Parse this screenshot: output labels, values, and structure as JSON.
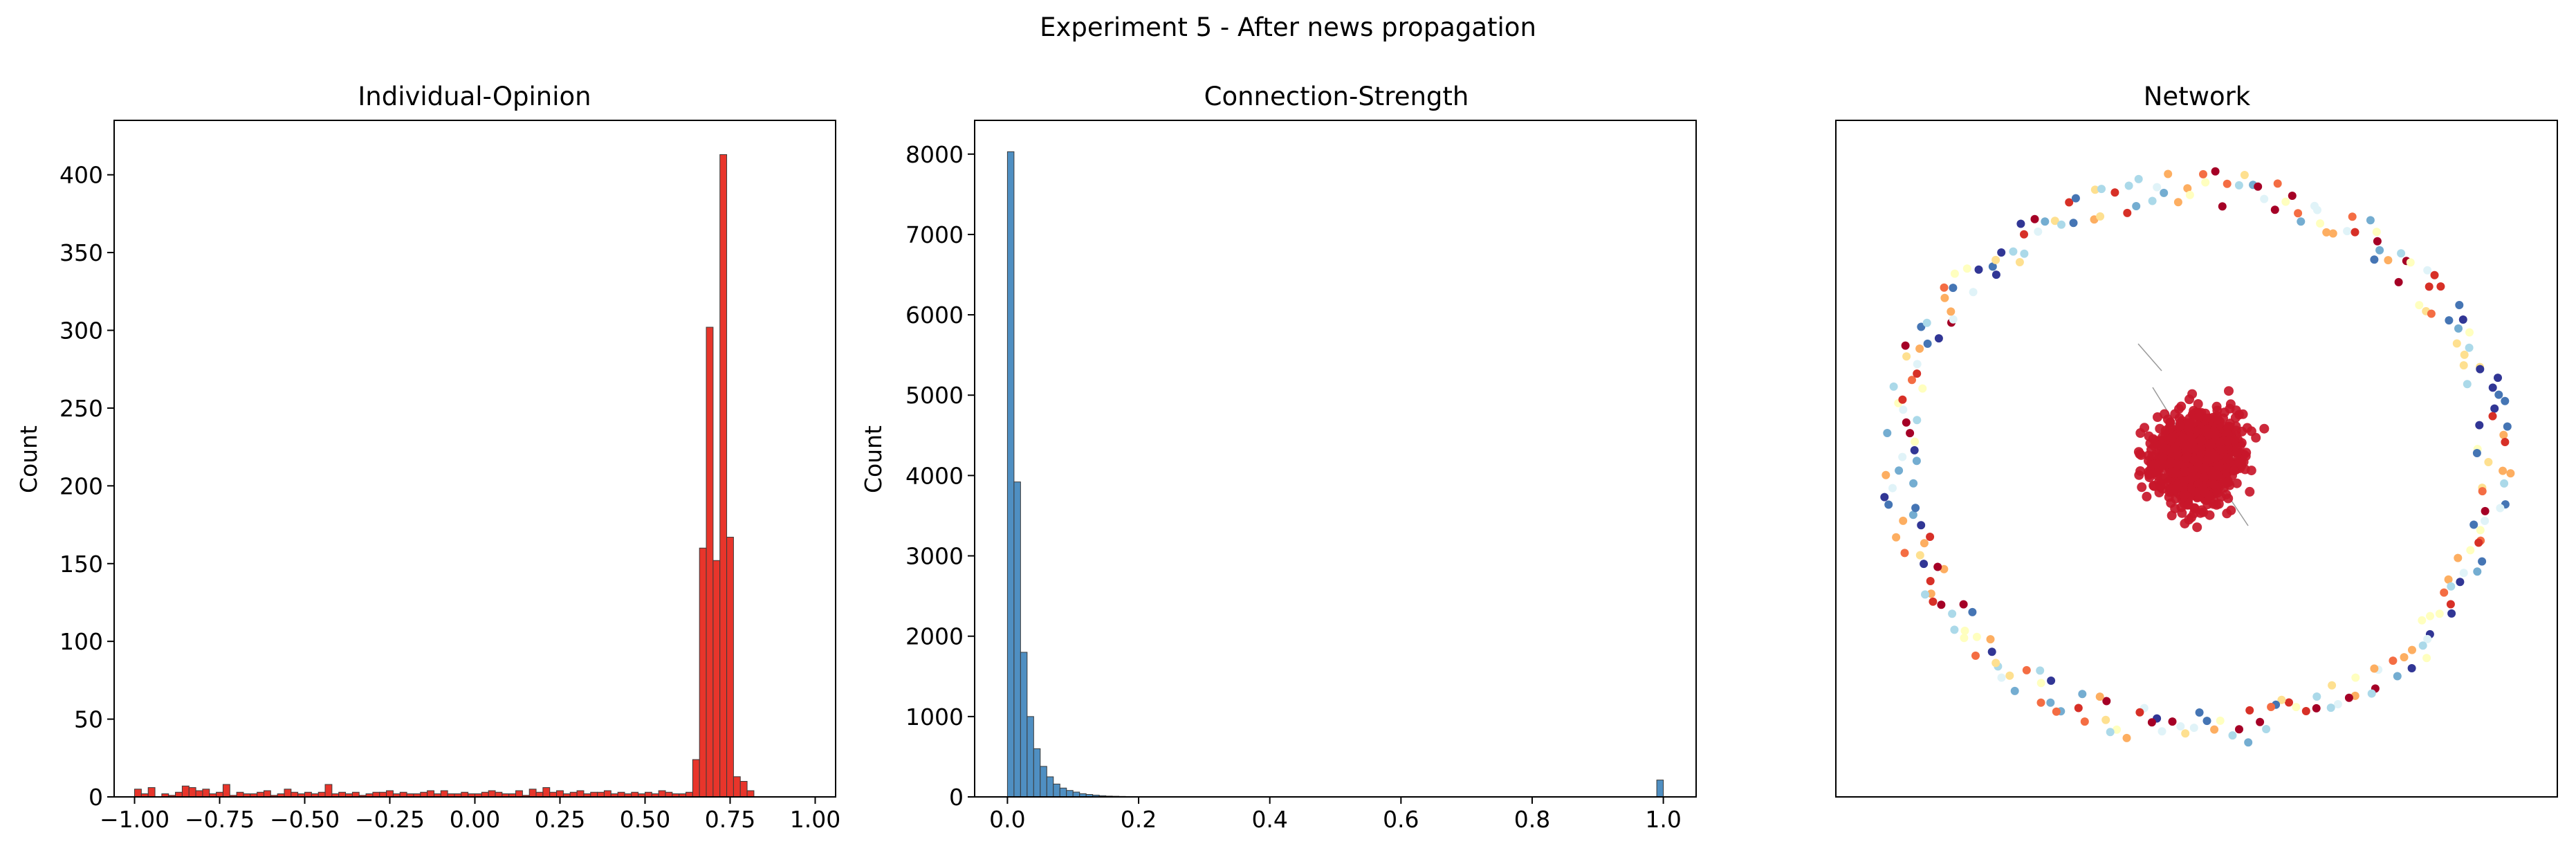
{
  "figure": {
    "suptitle": "Experiment 5 - After news propagation"
  },
  "colors": {
    "opinion_bar": "#e8352b",
    "strength_bar": "#4f8fc2",
    "bar_edge": "#3a3a3a",
    "network_cluster": "#c8172a",
    "network_edge": "#9a9a9a",
    "network_palette": [
      "#313695",
      "#4575b4",
      "#74add1",
      "#abd9e9",
      "#e0f3f8",
      "#ffffbf",
      "#fee090",
      "#fdae61",
      "#f46d43",
      "#d73027",
      "#a50026"
    ]
  },
  "chart_data": [
    {
      "type": "bar",
      "subtype": "histogram",
      "title": "Individual-Opinion",
      "xlabel": "",
      "ylabel": "Count",
      "xlim": [
        -1.06,
        1.06
      ],
      "ylim": [
        0,
        435
      ],
      "xticks": [
        -1.0,
        -0.75,
        -0.5,
        -0.25,
        0.0,
        0.25,
        0.5,
        0.75,
        1.0
      ],
      "xtick_labels": [
        "−1.00",
        "−0.75",
        "−0.50",
        "−0.25",
        "0.00",
        "0.25",
        "0.50",
        "0.75",
        "1.00"
      ],
      "yticks": [
        0,
        50,
        100,
        150,
        200,
        250,
        300,
        350,
        400
      ],
      "ytick_labels": [
        "0",
        "50",
        "100",
        "150",
        "200",
        "250",
        "300",
        "350",
        "400"
      ],
      "bin_start": -1.0,
      "bin_width": 0.02,
      "values": [
        5,
        2,
        6,
        0,
        2,
        1,
        3,
        7,
        6,
        4,
        5,
        2,
        3,
        8,
        1,
        3,
        2,
        2,
        3,
        4,
        1,
        2,
        5,
        3,
        2,
        3,
        2,
        3,
        8,
        2,
        3,
        2,
        3,
        1,
        2,
        3,
        3,
        4,
        2,
        3,
        2,
        2,
        3,
        4,
        2,
        4,
        2,
        2,
        3,
        2,
        2,
        3,
        4,
        3,
        2,
        2,
        4,
        1,
        5,
        3,
        6,
        3,
        4,
        2,
        3,
        4,
        2,
        3,
        3,
        4,
        2,
        3,
        2,
        3,
        2,
        3,
        2,
        4,
        3,
        2,
        2,
        3,
        24,
        160,
        302,
        152,
        413,
        167,
        13,
        10,
        4
      ],
      "grid": false,
      "legend": false
    },
    {
      "type": "bar",
      "subtype": "histogram",
      "title": "Connection-Strength",
      "xlabel": "",
      "ylabel": "Count",
      "xlim": [
        -0.05,
        1.05
      ],
      "ylim": [
        0,
        8420
      ],
      "xticks": [
        0.0,
        0.2,
        0.4,
        0.6,
        0.8,
        1.0
      ],
      "xtick_labels": [
        "0.0",
        "0.2",
        "0.4",
        "0.6",
        "0.8",
        "1.0"
      ],
      "yticks": [
        0,
        1000,
        2000,
        3000,
        4000,
        5000,
        6000,
        7000,
        8000
      ],
      "ytick_labels": [
        "0",
        "1000",
        "2000",
        "3000",
        "4000",
        "5000",
        "6000",
        "7000",
        "8000"
      ],
      "bin_start": 0.0,
      "bin_width": 0.01,
      "values": [
        8030,
        3920,
        1800,
        1000,
        600,
        380,
        250,
        160,
        110,
        80,
        60,
        40,
        30,
        22,
        15,
        10,
        8,
        6,
        4,
        3,
        2,
        1,
        1,
        1,
        0,
        0,
        0,
        0,
        0,
        0,
        0,
        0,
        0,
        0,
        0,
        0,
        0,
        0,
        0,
        0,
        0,
        0,
        0,
        0,
        0,
        0,
        0,
        0,
        0,
        0,
        0,
        0,
        0,
        0,
        0,
        0,
        0,
        0,
        0,
        0,
        0,
        0,
        0,
        0,
        0,
        0,
        0,
        0,
        0,
        0,
        0,
        0,
        0,
        0,
        0,
        0,
        0,
        0,
        0,
        0,
        0,
        0,
        0,
        0,
        0,
        0,
        0,
        0,
        0,
        0,
        0,
        0,
        0,
        0,
        0,
        0,
        0,
        0,
        0,
        210
      ],
      "grid": false,
      "legend": false
    },
    {
      "type": "scatter",
      "subtype": "network",
      "title": "Network",
      "xlabel": "",
      "ylabel": "",
      "axes_visible": false,
      "central_cluster": {
        "nodes": 1100,
        "color_key": "network_cluster"
      },
      "ring": {
        "nodes": 260,
        "color_key": "network_palette"
      },
      "xlim": [
        -1.15,
        1.15
      ],
      "ylim": [
        -1.15,
        1.15
      ]
    }
  ]
}
